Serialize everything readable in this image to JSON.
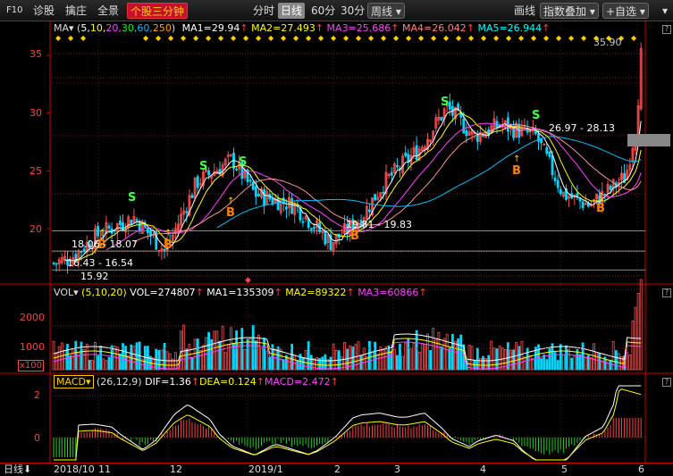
{
  "toolbar": {
    "f10": "F10",
    "items": [
      "诊股",
      "擒庄",
      "全景"
    ],
    "active": "个股三分钟",
    "periods": [
      "分时",
      "日线",
      "60分",
      "30分",
      "周线"
    ],
    "selected_period": "日线",
    "draw": "画线",
    "overlay": "指数叠加",
    "watch": "+自选"
  },
  "ma_legend": {
    "name": "MA",
    "params_prefix": "(",
    "p1": "5,",
    "p2": "10,",
    "p3": "20,",
    "p4": "30,",
    "p5": "60,",
    "p6": "250",
    "params_suffix": ")",
    "ma1": "MA1=29.94",
    "ma2": "MA2=27.493",
    "ma3": "MA3=25.686",
    "ma4": "MA4=26.042",
    "ma5": "MA5=26.944"
  },
  "vol_legend": {
    "name": "VOL",
    "params": "(5,10,20)",
    "vol": "VOL=274807",
    "ma1": "MA1=135309",
    "ma2": "MA2=89322",
    "ma3": "MA3=60866"
  },
  "macd_legend": {
    "name": "MACD",
    "params": "(26,12,9)",
    "dif": "DIF=1.36",
    "dea": "DEA=0.124",
    "macd": "MACD=2.472"
  },
  "annotations": {
    "high": "35.90",
    "range1": "18.06 - 18.07",
    "range2": "16.43 - 16.54",
    "low": "15.92",
    "range3": "19.81 - 19.83",
    "range4": "26.97 - 28.13"
  },
  "signals": {
    "buy": "B",
    "sell": "S"
  },
  "price_axis": [
    "35",
    "30",
    "25",
    "20"
  ],
  "vol_axis": [
    "2000",
    "1000",
    "x100"
  ],
  "macd_axis": [
    "2",
    "0"
  ],
  "x_axis": [
    "2018/10",
    "11",
    "12",
    "2019/1",
    "2",
    "3",
    "4",
    "5",
    "6"
  ],
  "bottom_label": "日线",
  "colors": {
    "up": "#ff5050",
    "down": "#00d8ff",
    "ma5": "#ffffff",
    "ma10": "#ffff00",
    "ma20": "#ff40ff",
    "ma30": "#00ff00",
    "ma60": "#00c0ff",
    "accent": "#c8102e"
  },
  "chart_data": {
    "type": "candlestick",
    "x": [
      "2018/10",
      "11",
      "12",
      "2019/1",
      "2",
      "3",
      "4",
      "5",
      "6"
    ],
    "price_ylim": [
      15,
      37
    ],
    "high": 35.9,
    "low": 15.92,
    "ma": {
      "MA1": 29.94,
      "MA2": 27.493,
      "MA3": 25.686,
      "MA4": 26.042,
      "MA5": 26.944
    },
    "volume": {
      "VOL": 274807,
      "MA1": 135309,
      "MA2": 89322,
      "MA3": 60866
    },
    "macd": {
      "DIF": 1.36,
      "DEA": 0.124,
      "MACD": 2.472
    }
  }
}
